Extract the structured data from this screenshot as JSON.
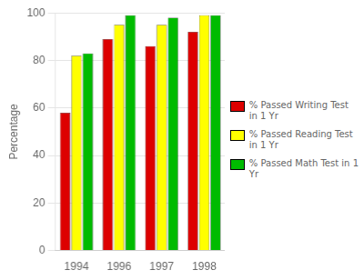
{
  "chart_data": {
    "type": "bar",
    "categories": [
      "1994",
      "1996",
      "1997",
      "1998"
    ],
    "series": [
      {
        "name": "% Passed Writing Test\nin 1 Yr",
        "color": "#dd0000",
        "values": [
          58,
          89,
          86,
          92
        ]
      },
      {
        "name": "% Passed Reading Test\nin 1 Yr",
        "color": "#ffff00",
        "values": [
          82,
          95,
          95,
          99
        ]
      },
      {
        "name": "% Passed Math Test in 1\nYr",
        "color": "#00bb00",
        "values": [
          83,
          99,
          98,
          99
        ]
      }
    ],
    "ylabel": "Percentage",
    "ylim": [
      0,
      100
    ],
    "yticks": [
      0,
      20,
      40,
      60,
      80,
      100
    ],
    "grid": true,
    "legend": "right"
  }
}
